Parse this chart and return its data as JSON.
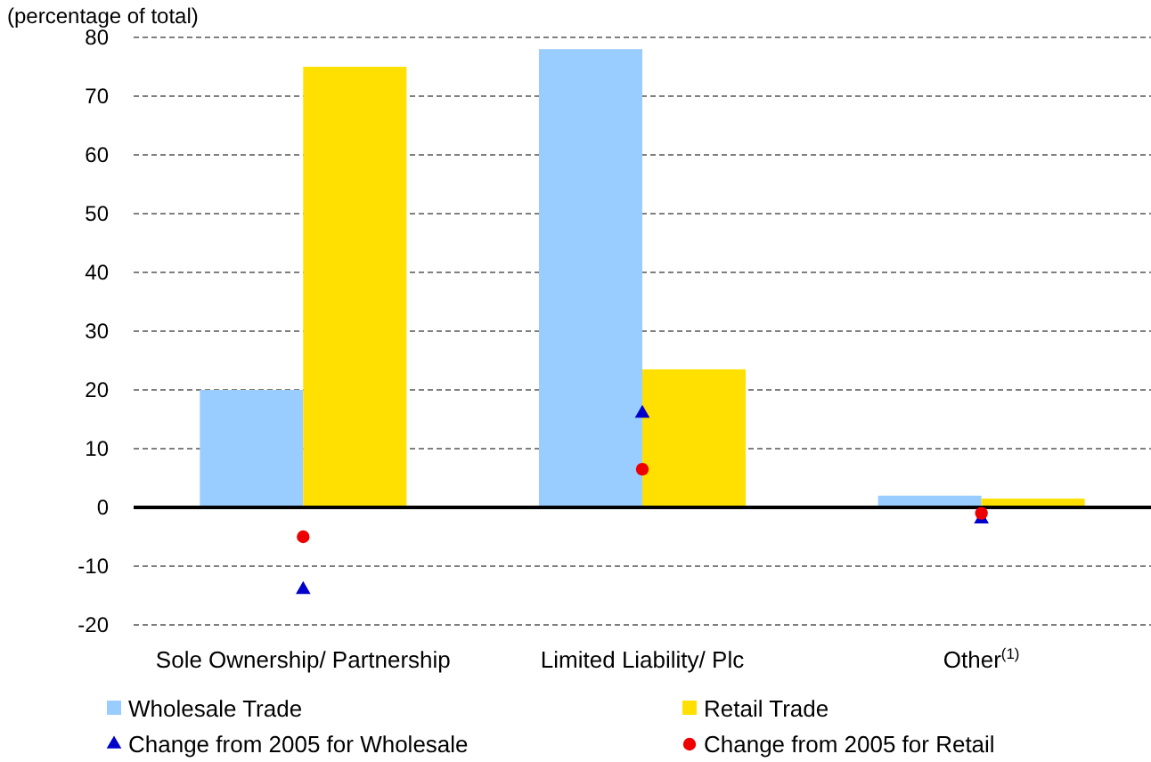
{
  "chart_data": {
    "type": "bar",
    "ylabel": "(percentage of total)",
    "categories": [
      "Sole Ownership/ Partnership",
      "Limited Liability/ Plc",
      "Other$^{(1)}$"
    ],
    "series": [
      {
        "name": "Wholesale Trade",
        "color": "#99ccff",
        "values": [
          20,
          78,
          2
        ]
      },
      {
        "name": "Retail Trade",
        "color": "#ffe000",
        "values": [
          75,
          23.5,
          1.5
        ]
      },
      {
        "name": "Change from 2005 for Wholesale",
        "type": "scatter",
        "marker": "triangle",
        "color": "#0000cc",
        "values": [
          -14,
          16,
          -2
        ]
      },
      {
        "name": "Change from 2005 for Retail",
        "type": "scatter",
        "marker": "circle",
        "color": "#ee0000",
        "values": [
          -5,
          6.5,
          -1
        ]
      }
    ],
    "ylim": [
      -20,
      80
    ],
    "yticks": [
      -20,
      -10,
      0,
      10,
      20,
      30,
      40,
      50,
      60,
      70,
      80
    ],
    "grid": "y",
    "legend": "bottom"
  }
}
